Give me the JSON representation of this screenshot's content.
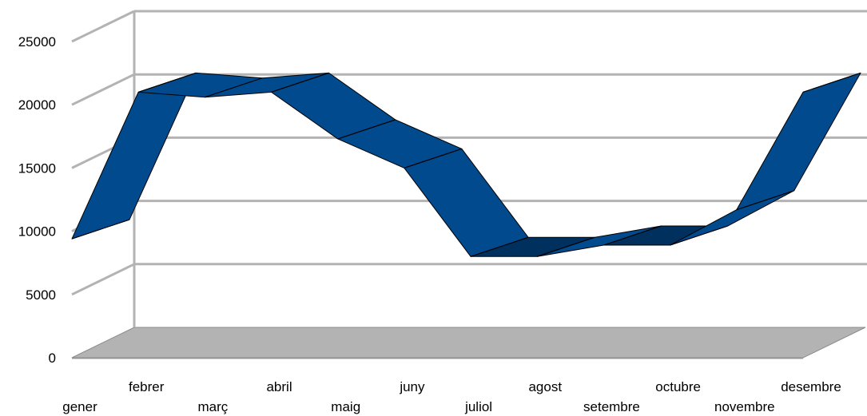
{
  "chart_data": {
    "type": "line",
    "style": "3d-ribbon",
    "categories": [
      "gener",
      "febrer",
      "març",
      "abril",
      "maig",
      "juny",
      "juliol",
      "agost",
      "setembre",
      "octubre",
      "novembre",
      "desembre"
    ],
    "series": [
      {
        "values": [
          9400,
          21000,
          20600,
          21000,
          17300,
          15000,
          8000,
          8000,
          8900,
          8900,
          11700,
          21000
        ]
      }
    ],
    "ylim": [
      0,
      25000
    ],
    "yticks": [
      0,
      5000,
      10000,
      15000,
      20000,
      25000
    ],
    "grid": true,
    "legend": "none",
    "colors": {
      "ribbon_top": "#004A8D",
      "ribbon_front": "#004A8D",
      "ribbon_dark": "#00305E",
      "gridline": "#B3B3B3",
      "floor": "#B3B3B3",
      "back_wall": "#FFFFFF"
    }
  }
}
